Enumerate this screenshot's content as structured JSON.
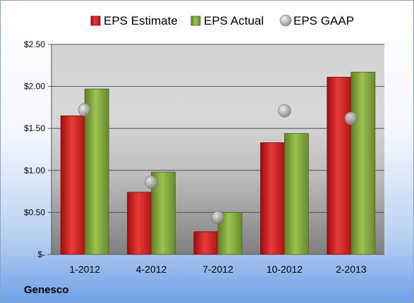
{
  "company": "Genesco",
  "chart_data": {
    "type": "bar",
    "title": "",
    "xlabel": "",
    "ylabel": "",
    "categories": [
      "1-2012",
      "4-2012",
      "7-2012",
      "10-2012",
      "2-2013"
    ],
    "series": [
      {
        "name": "EPS Estimate",
        "kind": "bar",
        "color": "#cc1f1f",
        "values": [
          1.65,
          0.74,
          0.27,
          1.33,
          2.11
        ]
      },
      {
        "name": "EPS Actual",
        "kind": "bar",
        "color": "#7ea13a",
        "values": [
          1.97,
          0.98,
          0.5,
          1.44,
          2.17
        ]
      },
      {
        "name": "EPS GAAP",
        "kind": "marker",
        "color": "#a8a8a8",
        "values": [
          1.72,
          0.86,
          0.44,
          1.71,
          1.62
        ]
      }
    ],
    "yticks": [
      "$-",
      "$0.50",
      "$1.00",
      "$1.50",
      "$2.00",
      "$2.50"
    ],
    "ylim": [
      0,
      2.5
    ],
    "grid": true,
    "legend": "top"
  }
}
